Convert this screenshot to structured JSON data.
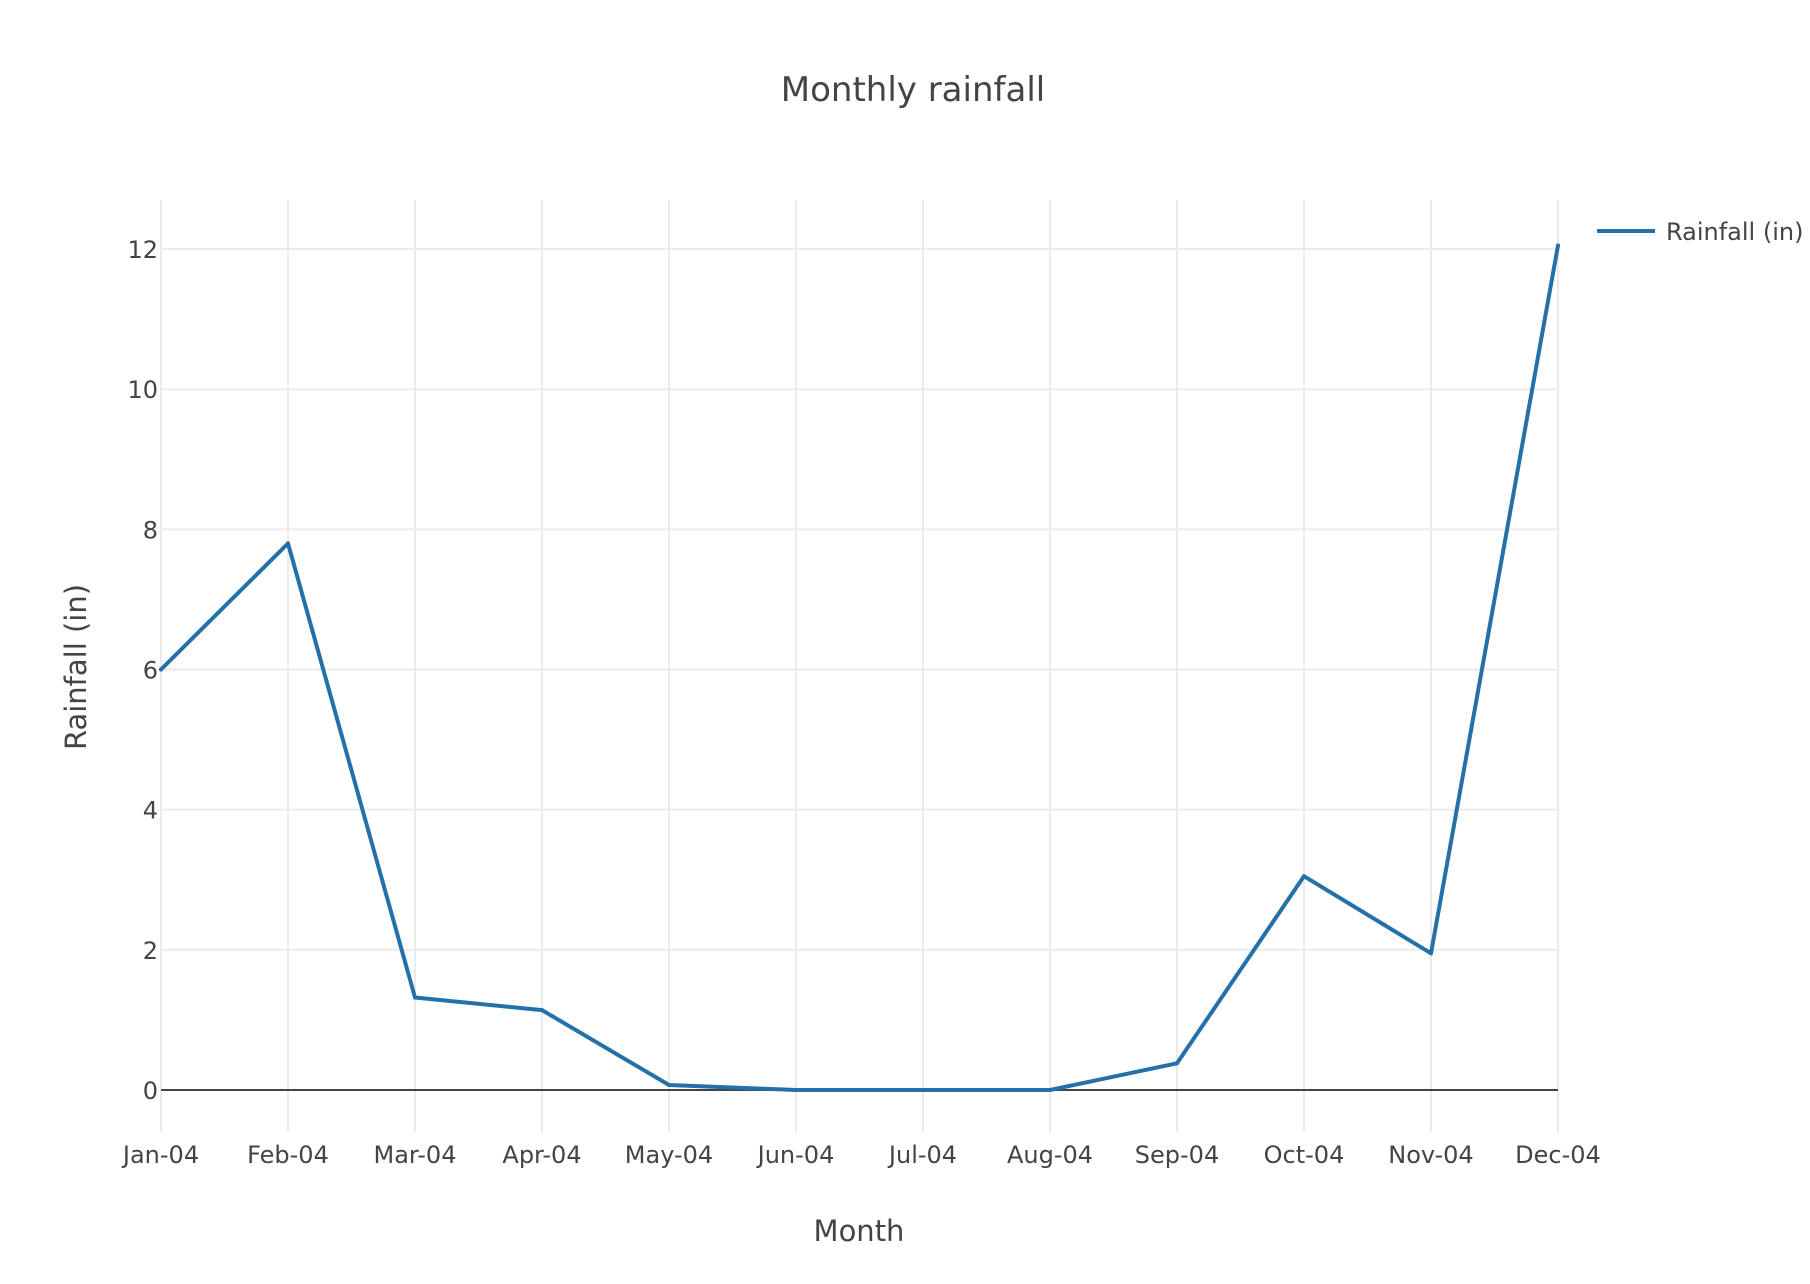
{
  "chart_data": {
    "type": "line",
    "title": "Monthly rainfall",
    "xlabel": "Month",
    "ylabel": "Rainfall (in)",
    "categories": [
      "Jan-04",
      "Feb-04",
      "Mar-04",
      "Apr-04",
      "May-04",
      "Jun-04",
      "Jul-04",
      "Aug-04",
      "Sep-04",
      "Oct-04",
      "Nov-04",
      "Dec-04"
    ],
    "series": [
      {
        "name": "Rainfall (in)",
        "values": [
          6.0,
          7.8,
          1.32,
          1.14,
          0.07,
          0.0,
          0.0,
          0.0,
          0.38,
          3.05,
          1.95,
          12.05
        ],
        "color": "#2470a8"
      }
    ],
    "ylim": [
      -0.6,
      12.7
    ],
    "yticks": [
      0,
      2,
      4,
      6,
      8,
      10,
      12
    ],
    "grid": true,
    "legend_placement": "top-right"
  }
}
